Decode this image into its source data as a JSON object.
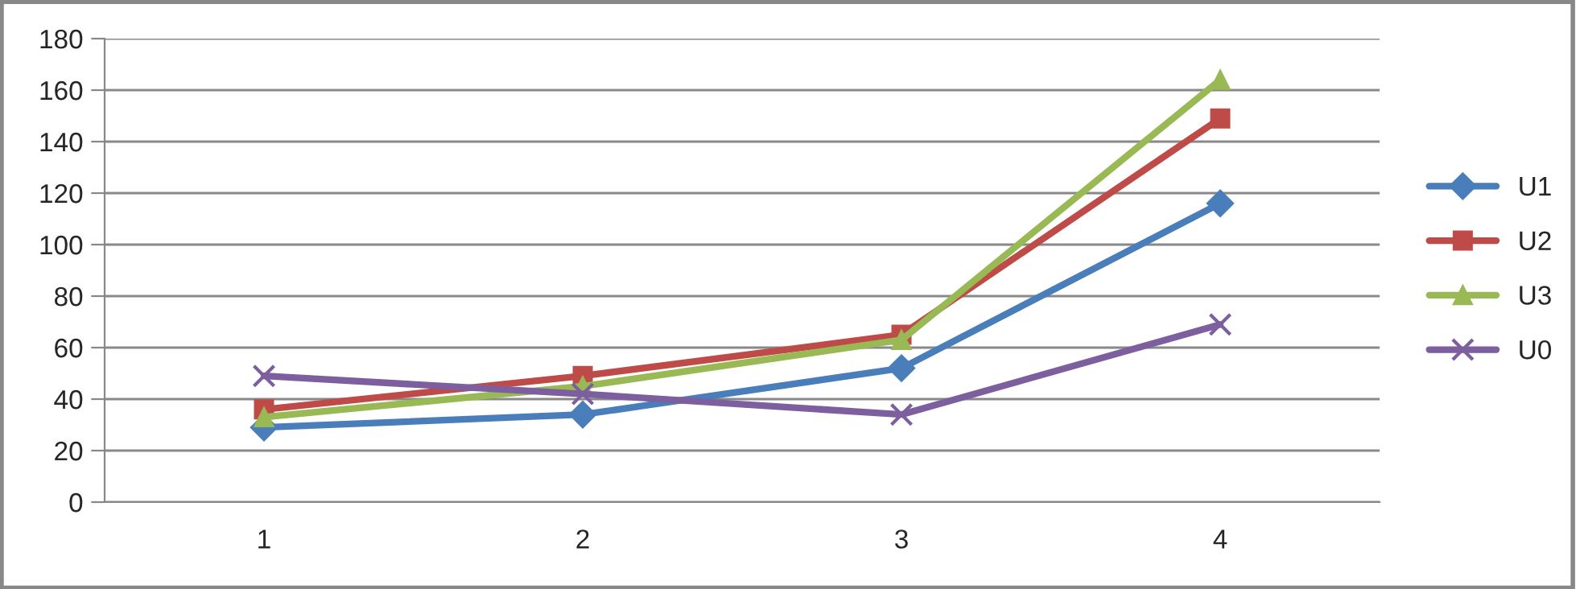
{
  "chart_data": {
    "type": "line",
    "categories": [
      "1",
      "2",
      "3",
      "4"
    ],
    "series": [
      {
        "name": "U1",
        "color": "#4a7ebb",
        "marker": "diamond",
        "values": [
          29,
          34,
          52,
          116
        ]
      },
      {
        "name": "U2",
        "color": "#be4b48",
        "marker": "square",
        "values": [
          36,
          49,
          65,
          149
        ]
      },
      {
        "name": "U3",
        "color": "#98b954",
        "marker": "triangle",
        "values": [
          33,
          45,
          63,
          164
        ]
      },
      {
        "name": "U0",
        "color": "#7d5fa0",
        "marker": "cross",
        "values": [
          49,
          42,
          34,
          69
        ]
      }
    ],
    "ylim": [
      0,
      180
    ],
    "yticks": [
      0,
      20,
      40,
      60,
      80,
      100,
      120,
      140,
      160,
      180
    ],
    "grid": "y",
    "legend": "right",
    "line_style": "solid"
  }
}
